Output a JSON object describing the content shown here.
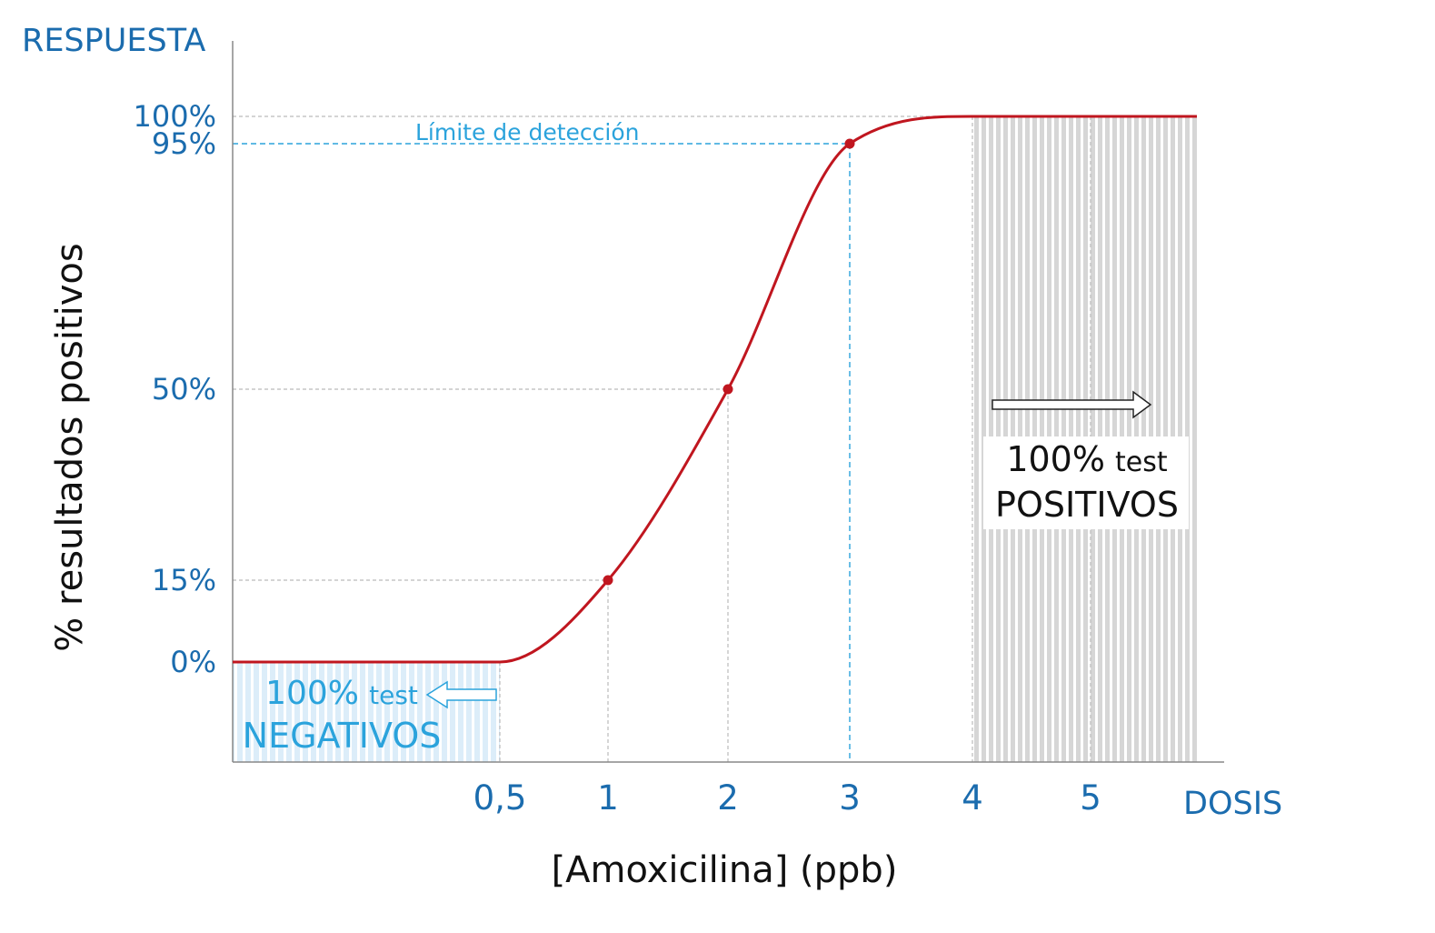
{
  "chart_data": {
    "type": "line",
    "y_axis_title": "RESPUESTA",
    "ylabel": "% resultados positivos",
    "x_axis_title": "DOSIS",
    "xlabel": "[Amoxicilina] (ppb)",
    "x_ticks": [
      "0,5",
      "1",
      "2",
      "3",
      "4",
      "5"
    ],
    "x_tick_values": [
      0.5,
      1,
      2,
      3,
      4,
      5
    ],
    "y_ticks": [
      "0%",
      "15%",
      "50%",
      "95%",
      "100%"
    ],
    "y_tick_values": [
      0,
      15,
      50,
      95,
      100
    ],
    "ylim": [
      0,
      100
    ],
    "series": [
      {
        "x": [
          0,
          0.5,
          1,
          2,
          3,
          4,
          5.9
        ],
        "y": [
          0,
          0,
          15,
          50,
          95,
          100,
          100
        ],
        "marked_points": [
          [
            1,
            15
          ],
          [
            2,
            50
          ],
          [
            3,
            95
          ]
        ],
        "color": "#c0161f"
      }
    ],
    "annotations": {
      "detection_limit": {
        "label": "Límite de detección",
        "x": 3,
        "y": 95,
        "color": "#2ba3dc"
      },
      "negative_region": {
        "line1_num": "100%",
        "line1_word": "test",
        "line2": "NEGATIVOS",
        "x_range": [
          0,
          0.5
        ],
        "color": "#2ba3dc"
      },
      "positive_region": {
        "line1_num": "100%",
        "line1_word": "test",
        "line2": "POSITIVOS",
        "x_range": [
          4,
          5.9
        ],
        "color": "#cccccc"
      }
    },
    "grid": false,
    "colors": {
      "axis_text": "#1b6cae",
      "curve": "#c0161f",
      "guide": "#bbbbbb"
    }
  }
}
